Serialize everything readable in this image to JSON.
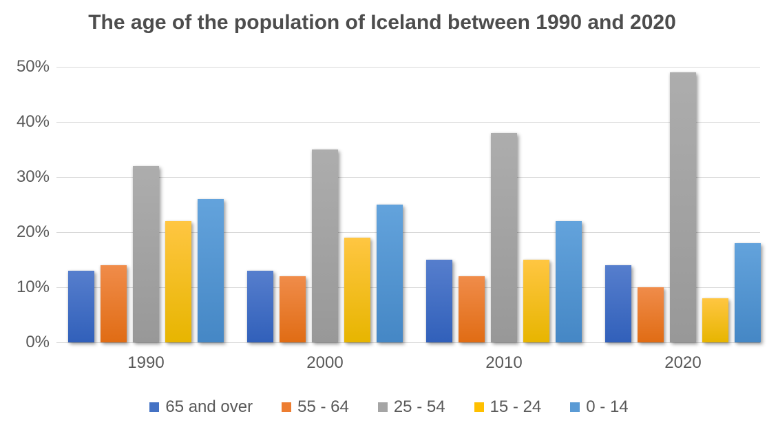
{
  "chart_data": {
    "type": "bar",
    "title": "The age of the population of Iceland between 1990 and 2020",
    "categories": [
      "1990",
      "2000",
      "2010",
      "2020"
    ],
    "series": [
      {
        "name": "65 and over",
        "color": "#4472C4",
        "gradient_top": "#567ecd",
        "gradient_bottom": "#3160ba",
        "values": [
          13,
          13,
          15,
          14
        ]
      },
      {
        "name": "55 - 64",
        "color": "#ED7D31",
        "gradient_top": "#f08c4a",
        "gradient_bottom": "#e06c14",
        "values": [
          14,
          12,
          12,
          10
        ]
      },
      {
        "name": "25 - 54",
        "color": "#A5A5A5",
        "gradient_top": "#adadad",
        "gradient_bottom": "#989898",
        "values": [
          32,
          35,
          38,
          49
        ]
      },
      {
        "name": "15 - 24",
        "color": "#FFC000",
        "gradient_top": "#ffc642",
        "gradient_bottom": "#e7b500",
        "values": [
          22,
          19,
          15,
          8
        ]
      },
      {
        "name": "0 - 14",
        "color": "#5B9BD5",
        "gradient_top": "#63a3dc",
        "gradient_bottom": "#4587c5",
        "values": [
          26,
          25,
          22,
          18
        ]
      }
    ],
    "xlabel": "",
    "ylabel": "",
    "y_ticks": [
      "0%",
      "10%",
      "20%",
      "30%",
      "40%",
      "50%"
    ],
    "ylim": [
      0,
      50
    ],
    "grid": true,
    "legend_position": "bottom",
    "gridline_color": "#d9d9d9",
    "axis_text_color": "#595959",
    "title_color": "#4d4d4d",
    "background_color": "#ffffff"
  }
}
